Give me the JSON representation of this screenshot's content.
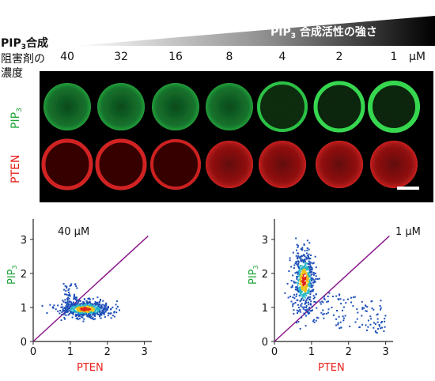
{
  "header": {
    "activity_label_main": "PIP",
    "activity_label_sub": "3",
    "activity_label_rest": " 合成活性の強さ",
    "inhibitor_label_main": "PIP",
    "inhibitor_label_sub": "3",
    "inhibitor_label_rest": "合成",
    "inhibitor_label_line2": "阻害剤の",
    "inhibitor_label_line3": "濃度",
    "concentrations": [
      "40",
      "32",
      "16",
      "8",
      "4",
      "2",
      "1"
    ],
    "unit": "μM"
  },
  "micrographs": {
    "row1_label_main": "PIP",
    "row1_label_sub": "3",
    "row1_color": "#21a63b",
    "row2_label": "PTEN",
    "row2_color": "#e8221d"
  },
  "chart_data": [
    {
      "type": "scatter",
      "annotation": "40 μM",
      "xlabel": "PTEN",
      "ylabel_main": "PIP",
      "ylabel_sub": "3",
      "xlim": [
        0,
        3.2
      ],
      "ylim": [
        0,
        3.6
      ],
      "xticks": [
        "0",
        "1",
        "2",
        "3"
      ],
      "yticks": [
        "0",
        "1",
        "2",
        "3"
      ],
      "diagonal": "y = x",
      "cluster_center": [
        1.4,
        0.95
      ],
      "cluster_spread": [
        0.35,
        0.12
      ]
    },
    {
      "type": "scatter",
      "annotation": "1 μM",
      "xlabel": "PTEN",
      "ylabel_main": "PIP",
      "ylabel_sub": "3",
      "xlim": [
        0,
        3.2
      ],
      "ylim": [
        0,
        3.6
      ],
      "xticks": [
        "0",
        "1",
        "2",
        "3"
      ],
      "yticks": [
        "0",
        "1",
        "2",
        "3"
      ],
      "diagonal": "y = x",
      "cluster_center": [
        0.8,
        1.8
      ],
      "cluster_spread": [
        0.15,
        0.45
      ]
    }
  ]
}
